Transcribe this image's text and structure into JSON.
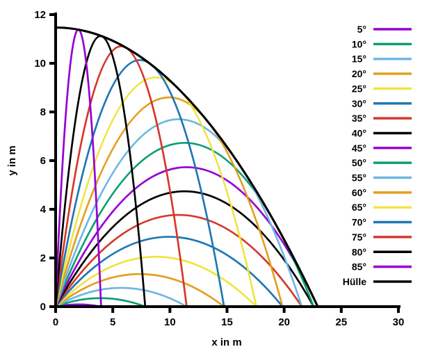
{
  "figure": {
    "background_color": "#ffffff",
    "axis_color": "#000000"
  },
  "chart_data": {
    "type": "line",
    "title": "",
    "xlabel": "x in m",
    "ylabel": "y in m",
    "xlim": [
      0,
      30
    ],
    "ylim": [
      0,
      12
    ],
    "xticks": [
      0,
      5,
      10,
      15,
      20,
      25,
      30
    ],
    "yticks": [
      0,
      2,
      4,
      6,
      8,
      10,
      12
    ],
    "grid": false,
    "legend_position": "right",
    "series": [
      {
        "label": "5°",
        "color": "#9400D3",
        "shape": "trajectory",
        "range_m": 3.98,
        "max_height_m": 0.09
      },
      {
        "label": "10°",
        "color": "#0E9E76",
        "shape": "trajectory",
        "range_m": 7.84,
        "max_height_m": 0.35
      },
      {
        "label": "15°",
        "color": "#6FB7E4",
        "shape": "trajectory",
        "range_m": 11.47,
        "max_height_m": 0.77
      },
      {
        "label": "20°",
        "color": "#E39F1E",
        "shape": "trajectory",
        "range_m": 14.74,
        "max_height_m": 1.34
      },
      {
        "label": "25°",
        "color": "#F0E442",
        "shape": "trajectory",
        "range_m": 17.57,
        "max_height_m": 2.05
      },
      {
        "label": "30°",
        "color": "#1F77B4",
        "shape": "trajectory",
        "range_m": 19.86,
        "max_height_m": 2.87
      },
      {
        "label": "35°",
        "color": "#D6372B",
        "shape": "trajectory",
        "range_m": 21.55,
        "max_height_m": 3.77
      },
      {
        "label": "40°",
        "color": "#000000",
        "shape": "trajectory",
        "range_m": 22.59,
        "max_height_m": 4.74
      },
      {
        "label": "45°",
        "color": "#9400D3",
        "shape": "trajectory",
        "range_m": 22.94,
        "max_height_m": 5.73
      },
      {
        "label": "50°",
        "color": "#0E9E76",
        "shape": "trajectory",
        "range_m": 22.59,
        "max_height_m": 6.73
      },
      {
        "label": "55°",
        "color": "#6FB7E4",
        "shape": "trajectory",
        "range_m": 21.55,
        "max_height_m": 7.7
      },
      {
        "label": "60°",
        "color": "#E39F1E",
        "shape": "trajectory",
        "range_m": 19.86,
        "max_height_m": 8.6
      },
      {
        "label": "65°",
        "color": "#F0E442",
        "shape": "trajectory",
        "range_m": 17.57,
        "max_height_m": 9.42
      },
      {
        "label": "70°",
        "color": "#1F77B4",
        "shape": "trajectory",
        "range_m": 14.74,
        "max_height_m": 10.13
      },
      {
        "label": "75°",
        "color": "#D6372B",
        "shape": "trajectory",
        "range_m": 11.47,
        "max_height_m": 10.7
      },
      {
        "label": "80°",
        "color": "#000000",
        "shape": "trajectory",
        "range_m": 7.84,
        "max_height_m": 11.12
      },
      {
        "label": "85°",
        "color": "#9400D3",
        "shape": "trajectory",
        "range_m": 3.98,
        "max_height_m": 11.38
      },
      {
        "label": "Hülle",
        "color": "#000000",
        "shape": "envelope",
        "range_m": 22.94,
        "max_height_m": 11.47
      }
    ]
  }
}
